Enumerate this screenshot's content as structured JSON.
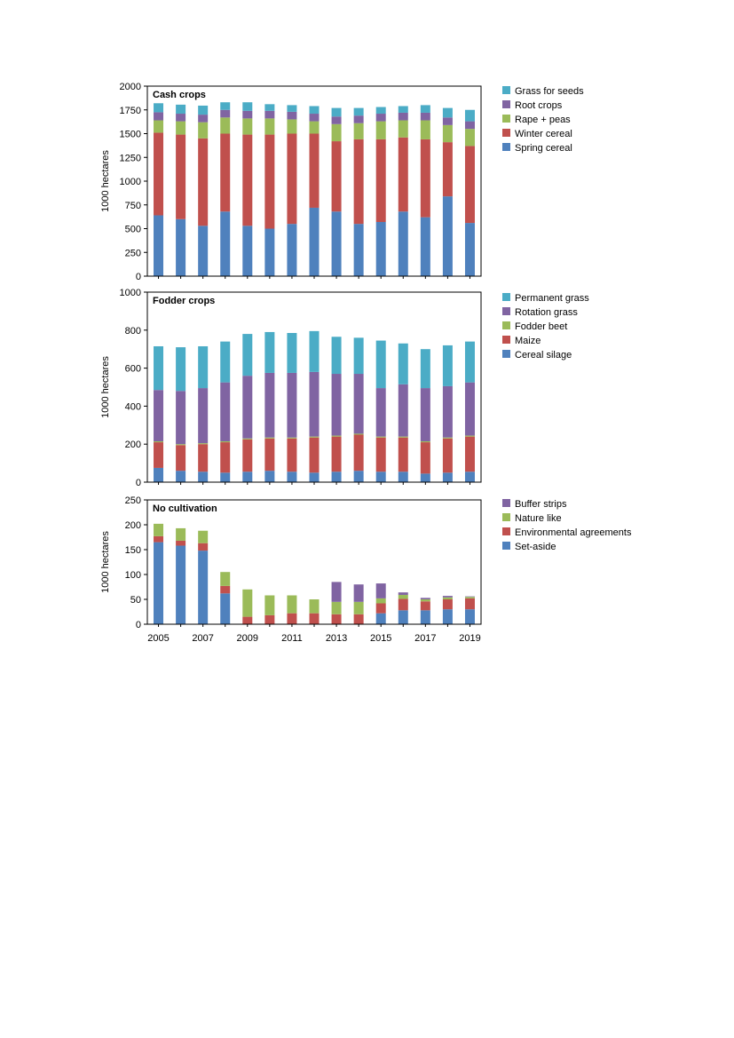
{
  "chart_data": [
    {
      "type": "bar",
      "stacked": true,
      "title": "Cash crops",
      "xlabel": "",
      "ylabel": "1000 hectares",
      "ylim": [
        0,
        2000
      ],
      "yticks": [
        0,
        250,
        500,
        750,
        1000,
        1250,
        1500,
        1750,
        2000
      ],
      "grid": false,
      "legend_position": "right",
      "categories": [
        "2005",
        "2006",
        "2007",
        "2008",
        "2009",
        "2010",
        "2011",
        "2012",
        "2013",
        "2014",
        "2015",
        "2016",
        "2017",
        "2018",
        "2019"
      ],
      "series": [
        {
          "name": "Spring cereal",
          "color": "#4f81bd",
          "values": [
            640,
            600,
            530,
            680,
            530,
            500,
            550,
            720,
            680,
            550,
            570,
            680,
            620,
            840,
            560
          ]
        },
        {
          "name": "Winter cereal",
          "color": "#c0504d",
          "values": [
            870,
            890,
            920,
            820,
            960,
            990,
            950,
            780,
            740,
            890,
            870,
            780,
            820,
            570,
            810
          ]
        },
        {
          "name": "Rape + peas",
          "color": "#9bbb59",
          "values": [
            130,
            140,
            170,
            170,
            170,
            170,
            150,
            130,
            180,
            170,
            190,
            180,
            200,
            180,
            180
          ]
        },
        {
          "name": "Root crops",
          "color": "#8064a2",
          "values": [
            85,
            80,
            80,
            80,
            80,
            80,
            80,
            80,
            80,
            80,
            80,
            80,
            80,
            80,
            80
          ]
        },
        {
          "name": "Grass for seeds",
          "color": "#4bacc6",
          "values": [
            95,
            95,
            95,
            80,
            90,
            70,
            70,
            80,
            90,
            80,
            70,
            70,
            80,
            100,
            120
          ]
        }
      ]
    },
    {
      "type": "bar",
      "stacked": true,
      "title": "Fodder crops",
      "xlabel": "",
      "ylabel": "1000 hectares",
      "ylim": [
        0,
        1000
      ],
      "yticks": [
        0,
        200,
        400,
        600,
        800,
        1000
      ],
      "grid": false,
      "legend_position": "right",
      "categories": [
        "2005",
        "2006",
        "2007",
        "2008",
        "2009",
        "2010",
        "2011",
        "2012",
        "2013",
        "2014",
        "2015",
        "2016",
        "2017",
        "2018",
        "2019"
      ],
      "series": [
        {
          "name": "Cereal silage",
          "color": "#4f81bd",
          "values": [
            75,
            60,
            55,
            50,
            55,
            60,
            55,
            50,
            55,
            60,
            55,
            55,
            45,
            50,
            55
          ]
        },
        {
          "name": "Maize",
          "color": "#c0504d",
          "values": [
            135,
            135,
            145,
            160,
            170,
            170,
            175,
            185,
            185,
            190,
            180,
            180,
            165,
            180,
            185
          ]
        },
        {
          "name": "Fodder beet",
          "color": "#9bbb59",
          "values": [
            5,
            5,
            5,
            5,
            5,
            5,
            5,
            5,
            5,
            5,
            5,
            5,
            5,
            5,
            5
          ]
        },
        {
          "name": "Rotation grass",
          "color": "#8064a2",
          "values": [
            270,
            280,
            290,
            310,
            330,
            340,
            340,
            340,
            325,
            315,
            255,
            275,
            280,
            270,
            280
          ]
        },
        {
          "name": "Permanent grass",
          "color": "#4bacc6",
          "values": [
            230,
            230,
            220,
            215,
            220,
            215,
            210,
            215,
            195,
            190,
            250,
            215,
            205,
            215,
            215
          ]
        }
      ]
    },
    {
      "type": "bar",
      "stacked": true,
      "title": "No cultivation",
      "xlabel": "",
      "ylabel": "1000 hectares",
      "ylim": [
        0,
        250
      ],
      "yticks": [
        0,
        50,
        100,
        150,
        200,
        250
      ],
      "grid": false,
      "legend_position": "right",
      "categories": [
        "2005",
        "2006",
        "2007",
        "2008",
        "2009",
        "2010",
        "2011",
        "2012",
        "2013",
        "2014",
        "2015",
        "2016",
        "2017",
        "2018",
        "2019"
      ],
      "xtick_labels_shown": [
        "2005",
        "2007",
        "2009",
        "2011",
        "2013",
        "2015",
        "2017",
        "2019"
      ],
      "series": [
        {
          "name": "Set-aside",
          "color": "#4f81bd",
          "values": [
            165,
            158,
            148,
            62,
            0,
            0,
            0,
            0,
            0,
            0,
            22,
            28,
            28,
            30,
            30
          ]
        },
        {
          "name": "Environmental agreements",
          "color": "#c0504d",
          "values": [
            12,
            10,
            15,
            15,
            15,
            18,
            22,
            22,
            20,
            20,
            20,
            23,
            18,
            20,
            22
          ]
        },
        {
          "name": "Nature like",
          "color": "#9bbb59",
          "values": [
            25,
            25,
            25,
            28,
            55,
            40,
            36,
            28,
            25,
            25,
            10,
            8,
            4,
            4,
            3
          ]
        },
        {
          "name": "Buffer strips",
          "color": "#8064a2",
          "values": [
            0,
            0,
            0,
            0,
            0,
            0,
            0,
            0,
            40,
            35,
            30,
            5,
            3,
            3,
            1
          ]
        }
      ]
    }
  ]
}
